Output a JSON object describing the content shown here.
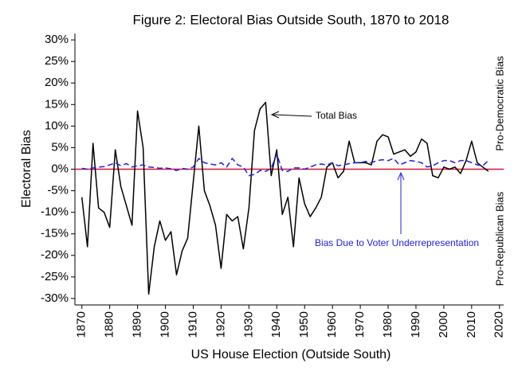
{
  "chart_data": {
    "type": "line",
    "title": "Figure 2: Electoral Bias Outside South, 1870 to 2018",
    "x_label": "US House Election (Outside South)",
    "y_label": "Electoral Bias",
    "x": [
      1870,
      1872,
      1874,
      1876,
      1878,
      1880,
      1882,
      1884,
      1886,
      1888,
      1890,
      1892,
      1894,
      1896,
      1898,
      1900,
      1902,
      1904,
      1906,
      1908,
      1910,
      1912,
      1914,
      1916,
      1918,
      1920,
      1922,
      1924,
      1926,
      1928,
      1930,
      1932,
      1934,
      1936,
      1938,
      1940,
      1942,
      1944,
      1946,
      1948,
      1950,
      1952,
      1954,
      1956,
      1958,
      1960,
      1962,
      1964,
      1966,
      1968,
      1970,
      1972,
      1974,
      1976,
      1978,
      1980,
      1982,
      1984,
      1986,
      1988,
      1990,
      1992,
      1994,
      1996,
      1998,
      2000,
      2002,
      2004,
      2006,
      2008,
      2010,
      2012,
      2014,
      2016
    ],
    "series": [
      {
        "name": "Total Bias",
        "color": "#000000",
        "dash": false,
        "values": [
          -6.5,
          -18,
          6,
          -9,
          -10,
          -13.5,
          4.5,
          -4,
          -8.5,
          -13,
          13.5,
          5,
          -29,
          -18,
          -12,
          -16.5,
          -14.5,
          -24.5,
          -19,
          -16,
          -3,
          10,
          -5,
          -8.5,
          -13,
          -23,
          -10.5,
          -12,
          -11,
          -18.5,
          -9,
          9,
          14,
          15.5,
          -1.5,
          4.5,
          -10.5,
          -6.5,
          -18,
          -2,
          -8,
          -11,
          -9,
          -6.5,
          0.5,
          1.5,
          -2,
          -0.5,
          6.5,
          1.5,
          1.5,
          1.5,
          1,
          6.5,
          8,
          7.5,
          3.5,
          4,
          4.5,
          3,
          4,
          7,
          6,
          -1.5,
          -2,
          0.5,
          0,
          0.5,
          -1,
          2,
          6.5,
          1.5,
          0.5,
          -0.5
        ]
      },
      {
        "name": "Bias Due to Voter Underrepresentation",
        "color": "#1f1fe6",
        "dash": true,
        "values": [
          0.2,
          0,
          0.3,
          0.5,
          0.6,
          1,
          1.5,
          0.8,
          1.3,
          0.5,
          0.8,
          1,
          0.5,
          0.4,
          0.2,
          0.3,
          0.1,
          -0.3,
          0.2,
          0,
          0.5,
          2.5,
          1.5,
          1.2,
          1,
          1.5,
          0.5,
          2.5,
          1,
          0.5,
          -1.5,
          -1.2,
          -0.3,
          -0.5,
          0.2,
          3.5,
          -0.3,
          -0.5,
          0.3,
          0.3,
          0,
          0.5,
          1,
          1.2,
          1,
          1.5,
          0.8,
          1,
          1.3,
          1.5,
          1.5,
          1.8,
          1.5,
          2,
          2.2,
          2,
          2.5,
          1,
          1.5,
          2,
          1.8,
          1.5,
          0.5,
          0.8,
          1.5,
          2,
          2,
          1.5,
          2,
          2,
          1.5,
          1,
          0.8,
          2
        ]
      }
    ],
    "xlim": [
      1867.5,
      2021.5
    ],
    "xticks": [
      1870,
      1880,
      1890,
      1900,
      1910,
      1920,
      1930,
      1940,
      1950,
      1960,
      1970,
      1980,
      1990,
      2000,
      2010,
      2020
    ],
    "ylim": [
      -31.5,
      31.5
    ],
    "yticks": [
      {
        "value": -30,
        "label": "-30%"
      },
      {
        "value": -25,
        "label": "-25%"
      },
      {
        "value": -20,
        "label": "-20%"
      },
      {
        "value": -15,
        "label": "-15%"
      },
      {
        "value": -10,
        "label": "-10%"
      },
      {
        "value": -5,
        "label": "-5%"
      },
      {
        "value": 0,
        "label": "0%"
      },
      {
        "value": 5,
        "label": "5%"
      },
      {
        "value": 10,
        "label": "10%"
      },
      {
        "value": 15,
        "label": "15%"
      },
      {
        "value": 20,
        "label": "20%"
      },
      {
        "value": 25,
        "label": "25%"
      },
      {
        "value": 30,
        "label": "30%"
      }
    ],
    "reference_line": {
      "value": 0,
      "color": "#d6143c"
    },
    "side_labels": [
      "Pro-Democratic Bias",
      "Pro-Republican Bias"
    ]
  }
}
